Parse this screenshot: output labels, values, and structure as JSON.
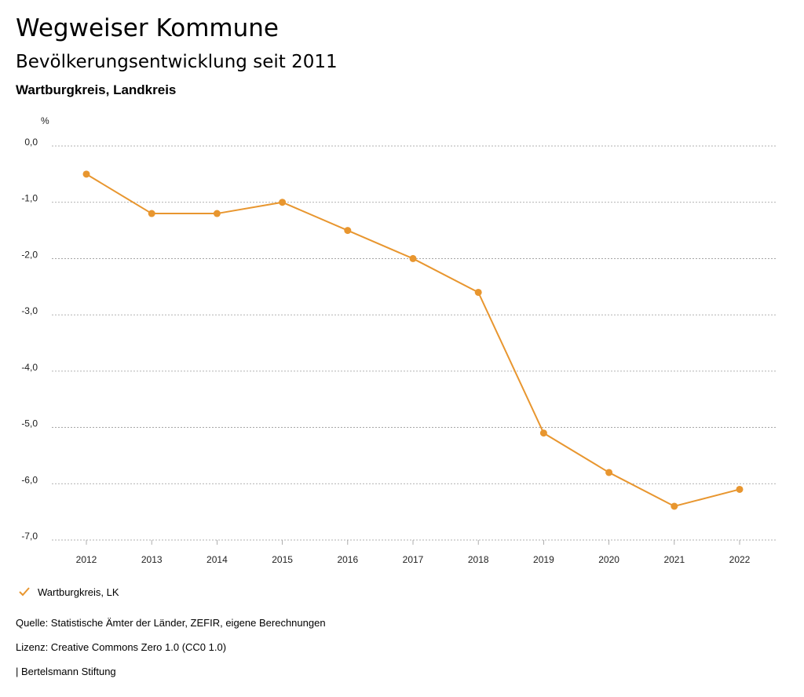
{
  "header": {
    "title": "Wegweiser Kommune",
    "subtitle": "Bevölkerungsentwicklung seit 2011",
    "region": "Wartburgkreis, Landkreis"
  },
  "chart_data": {
    "type": "line",
    "title": "Bevölkerungsentwicklung seit 2011",
    "ylabel": "%",
    "xlabel": "",
    "ylim": [
      -7.0,
      0.0
    ],
    "yticks": [
      "0,0",
      "-1,0",
      "-2,0",
      "-3,0",
      "-4,0",
      "-5,0",
      "-6,0",
      "-7,0"
    ],
    "ytick_values": [
      0,
      -1,
      -2,
      -3,
      -4,
      -5,
      -6,
      -7
    ],
    "categories": [
      "2012",
      "2013",
      "2014",
      "2015",
      "2016",
      "2017",
      "2018",
      "2019",
      "2020",
      "2021",
      "2022"
    ],
    "series": [
      {
        "name": "Wartburgkreis, LK",
        "color": "#e8962f",
        "values": [
          -0.5,
          -1.2,
          -1.2,
          -1.0,
          -1.5,
          -2.0,
          -2.6,
          -5.1,
          -5.8,
          -6.4,
          -6.1
        ]
      }
    ],
    "grid": true,
    "legend": "bottom-left"
  },
  "legend": {
    "label": "Wartburgkreis, LK",
    "icon": "check-icon"
  },
  "footer": {
    "source": "Quelle: Statistische Ämter der Länder, ZEFIR, eigene Berechnungen",
    "license": "Lizenz: Creative Commons Zero 1.0 (CC0 1.0)",
    "publisher": "| Bertelsmann Stiftung"
  }
}
